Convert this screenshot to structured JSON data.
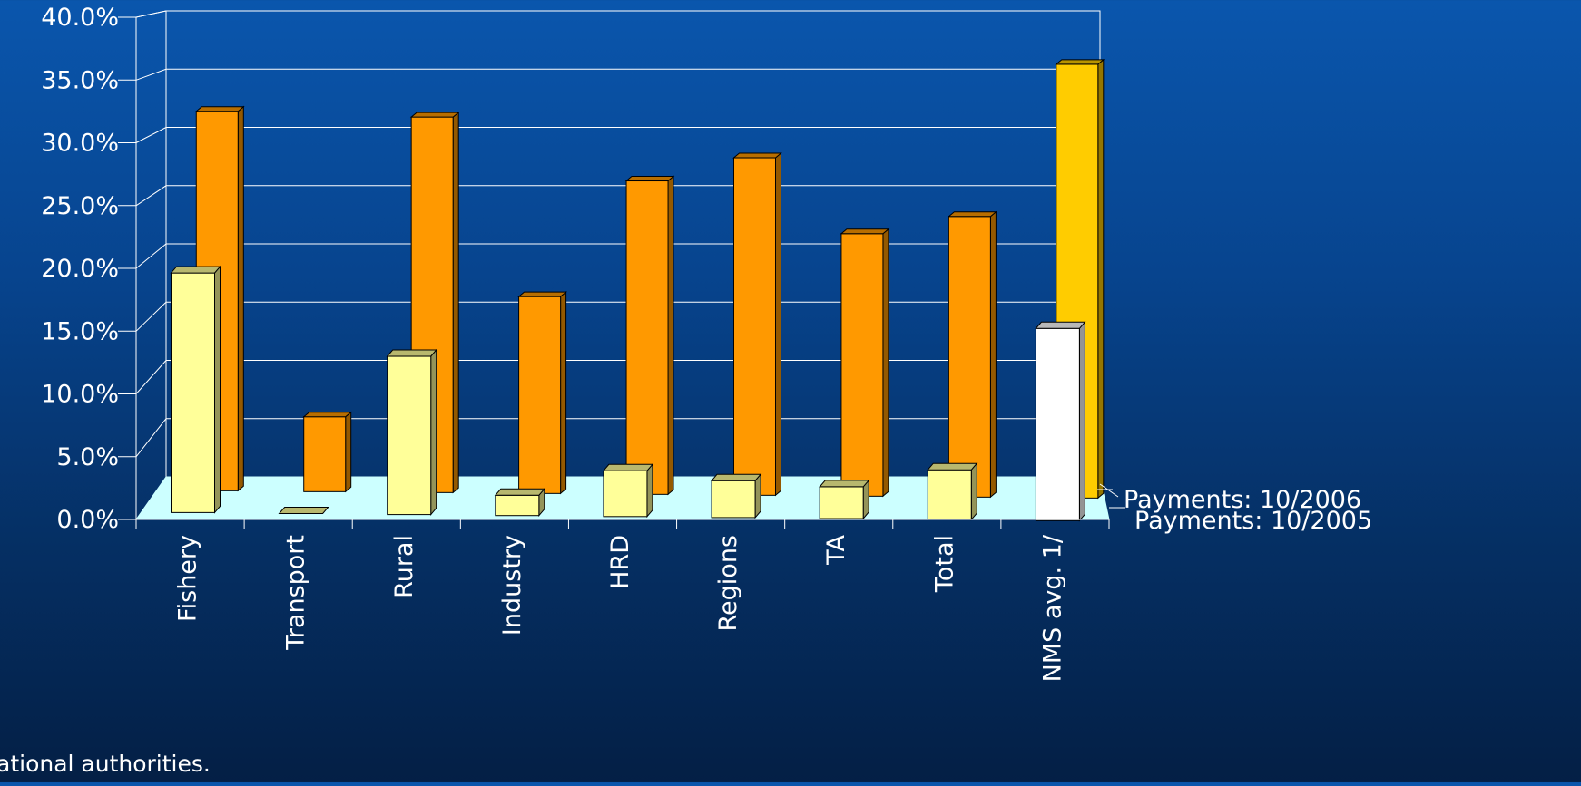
{
  "chart_data": {
    "type": "bar",
    "style": "3d-clustered-columns",
    "categories": [
      "Fishery",
      "Transport",
      "Rural",
      "Industry",
      "HRD",
      "Regions",
      "TA",
      "Total",
      "NMS avg. 1/"
    ],
    "series": [
      {
        "name": "Payments: 10/2006",
        "values": [
          33.0,
          6.5,
          32.5,
          17.0,
          27.0,
          29.0,
          22.5,
          24.0,
          37.0
        ],
        "color": "#ff9900",
        "highlight_color": "#ffcc00"
      },
      {
        "name": "Payments: 10/2005",
        "values": [
          19.0,
          0.0,
          12.5,
          1.6,
          3.6,
          2.9,
          2.5,
          3.9,
          15.0
        ],
        "color": "#ffff99",
        "highlight_color": "#ffffff"
      }
    ],
    "yticks": [
      "0.0%",
      "5.0%",
      "10.0%",
      "15.0%",
      "20.0%",
      "25.0%",
      "30.0%",
      "35.0%",
      "40.0%"
    ],
    "ylim": [
      0,
      40
    ],
    "ytick_step": 5,
    "grid": true,
    "legend": "right",
    "floor_color": "#ccffff"
  },
  "footer": {
    "source_note": "ational authorities."
  }
}
